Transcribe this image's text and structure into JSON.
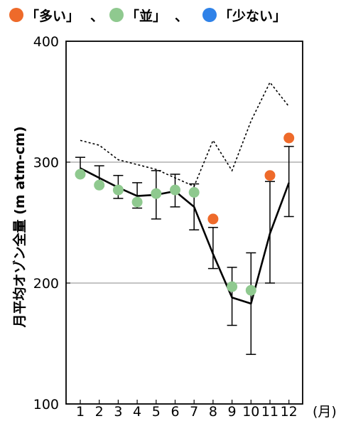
{
  "chart_data": {
    "type": "line",
    "ylabel": "月平均オゾン全量 (m atm-cm)",
    "xunit": "(月)",
    "ylim": [
      100,
      400
    ],
    "yticks": [
      100,
      200,
      300,
      400
    ],
    "gridlines_y": [
      200,
      300
    ],
    "x": [
      1,
      2,
      3,
      4,
      5,
      6,
      7,
      8,
      9,
      10,
      11,
      12
    ],
    "legend": [
      {
        "label": "「多い」",
        "color": "#ee6a2a"
      },
      {
        "label": "「並」",
        "color": "#8fc98f"
      },
      {
        "label": "「少ない」",
        "color": "#2f82e8"
      }
    ],
    "legend_separator": "、",
    "normal_line": [
      295,
      287,
      279,
      272,
      273,
      276,
      263,
      224,
      188,
      183,
      241,
      283
    ],
    "error_bars": [
      {
        "x": 1,
        "low": 289,
        "high": 304
      },
      {
        "x": 2,
        "low": 280,
        "high": 297
      },
      {
        "x": 3,
        "low": 270,
        "high": 289
      },
      {
        "x": 4,
        "low": 262,
        "high": 283
      },
      {
        "x": 5,
        "low": 253,
        "high": 293
      },
      {
        "x": 6,
        "low": 263,
        "high": 290
      },
      {
        "x": 7,
        "low": 244,
        "high": 282
      },
      {
        "x": 8,
        "low": 212,
        "high": 246
      },
      {
        "x": 9,
        "low": 165,
        "high": 213
      },
      {
        "x": 10,
        "low": 141,
        "high": 225
      },
      {
        "x": 11,
        "low": 200,
        "high": 284
      },
      {
        "x": 12,
        "low": 255,
        "high": 313
      }
    ],
    "dashed_line": [
      {
        "x": 1,
        "y": 318
      },
      {
        "x": 2,
        "y": 314
      },
      {
        "x": 3,
        "y": 302
      },
      {
        "x": 4,
        "y": 298
      },
      {
        "x": 5,
        "y": 294
      },
      {
        "x": 6,
        "y": 287
      },
      {
        "x": 7,
        "y": 280
      },
      {
        "x": 8,
        "y": 318
      },
      {
        "x": 9,
        "y": 293
      },
      {
        "x": 10,
        "y": 334
      },
      {
        "x": 11,
        "y": 366
      },
      {
        "x": 12,
        "y": 346
      }
    ],
    "points": [
      {
        "x": 1,
        "y": 290,
        "category": "並"
      },
      {
        "x": 2,
        "y": 281,
        "category": "並"
      },
      {
        "x": 3,
        "y": 277,
        "category": "並"
      },
      {
        "x": 4,
        "y": 267,
        "category": "並"
      },
      {
        "x": 5,
        "y": 274,
        "category": "並"
      },
      {
        "x": 6,
        "y": 277,
        "category": "並"
      },
      {
        "x": 7,
        "y": 275,
        "category": "並"
      },
      {
        "x": 8,
        "y": 253,
        "category": "多い"
      },
      {
        "x": 9,
        "y": 197,
        "category": "並"
      },
      {
        "x": 10,
        "y": 194,
        "category": "並"
      },
      {
        "x": 11,
        "y": 289,
        "category": "多い"
      },
      {
        "x": 12,
        "y": 320,
        "category": "多い"
      }
    ],
    "category_colors": {
      "多い": "#ee6a2a",
      "並": "#8fc98f",
      "少ない": "#2f82e8"
    }
  }
}
